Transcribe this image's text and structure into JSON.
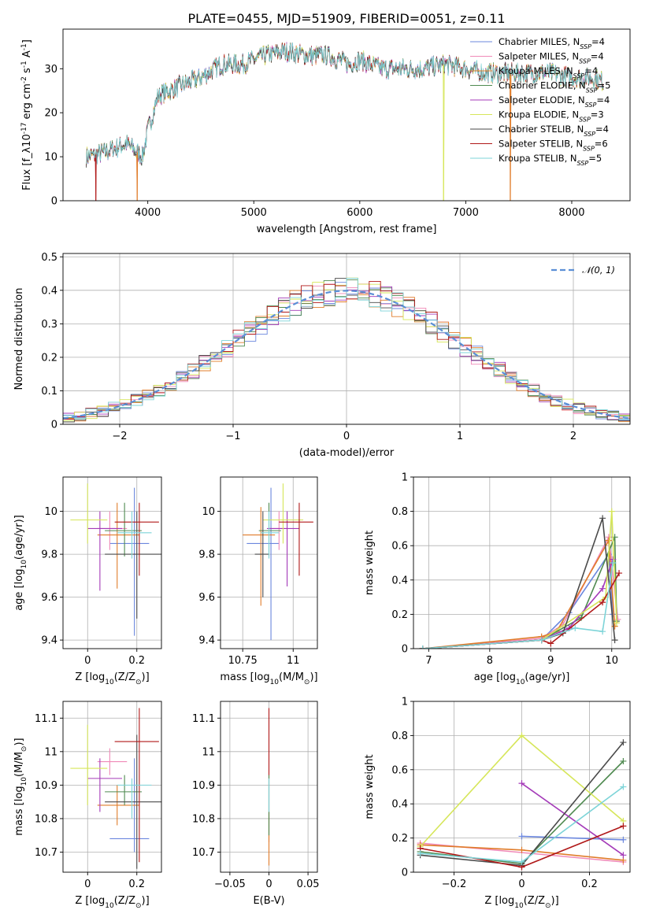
{
  "figure": {
    "title": "PLATE=0455, MJD=51909, FIBERID=0051, z=0.11"
  },
  "series_colors": [
    "#6b87de",
    "#f08ab8",
    "#e07c2a",
    "#4f8a50",
    "#a43ab8",
    "#d6e65a",
    "#4a4a4a",
    "#b01818",
    "#7dd4d8"
  ],
  "chart_data": [
    {
      "id": "spectrum",
      "type": "line",
      "xlabel": "wavelength [Angstrom, rest frame]",
      "ylabel": "Flux [f_λ10^-17 erg cm^-2 s^-1 A^-1]",
      "xlim": [
        3200,
        8550
      ],
      "ylim": [
        0,
        39
      ],
      "xticks": [
        4000,
        5000,
        6000,
        7000,
        8000
      ],
      "yticks": [
        0,
        10,
        20,
        30
      ],
      "grid": false,
      "legend_position": "top-right",
      "series": [
        {
          "name": "Chabrier MILES, N_SSP=4"
        },
        {
          "name": "Salpeter MILES, N_SSP=4"
        },
        {
          "name": "Kroupa MILES, N_SSP=4"
        },
        {
          "name": "Chabrier ELODIE, N_SSP=5"
        },
        {
          "name": "Salpeter ELODIE, N_SSP=4"
        },
        {
          "name": "Kroupa ELODIE, N_SSP=3"
        },
        {
          "name": "Chabrier STELIB, N_SSP=4"
        },
        {
          "name": "Salpeter STELIB, N_SSP=6"
        },
        {
          "name": "Kroupa STELIB, N_SSP=5"
        }
      ],
      "continuum_x": [
        3420,
        3600,
        3800,
        3950,
        4000,
        4100,
        4300,
        4500,
        4700,
        4900,
        5100,
        5300,
        5500,
        5700,
        5900,
        6000,
        6200,
        6400,
        6600,
        6800,
        7000,
        7200,
        7400,
        7600,
        7800,
        8000,
        8200,
        8300
      ],
      "continuum_y": [
        10,
        11,
        13,
        10,
        16,
        24,
        26,
        28,
        31,
        31,
        33,
        34,
        33,
        33,
        31,
        32,
        30,
        30,
        30,
        31,
        30,
        29,
        29,
        29,
        29,
        28,
        28,
        27
      ],
      "dropouts": [
        {
          "series": 7,
          "x": 3510
        },
        {
          "series": 2,
          "x": 3900
        },
        {
          "series": 5,
          "x": 6790
        },
        {
          "series": 2,
          "x": 7420
        }
      ]
    },
    {
      "id": "residual-histogram",
      "type": "bar",
      "xlabel": "(data-model)/error",
      "ylabel": "Normed distribution",
      "xlim": [
        -2.5,
        2.5
      ],
      "ylim": [
        0,
        0.51
      ],
      "xticks": [
        -2,
        -1,
        0,
        1,
        2
      ],
      "yticks": [
        0.0,
        0.1,
        0.2,
        0.3,
        0.4,
        0.5
      ],
      "grid": true,
      "legend_position": "top-right",
      "reference_curve": {
        "name": "𝒩(0, 1)",
        "mean": 0,
        "sigma": 1
      },
      "bin_width": 0.1
    },
    {
      "id": "age-vs-Z",
      "type": "scatter",
      "xlabel": "Z [log10(Z/Z⊙)]",
      "ylabel": "age  [log10(age/yr)]",
      "xlim": [
        -0.1,
        0.3
      ],
      "ylim": [
        9.36,
        10.16
      ],
      "xticks": [
        0.0,
        0.2
      ],
      "yticks": [
        9.4,
        9.6,
        9.8,
        10.0
      ],
      "grid": true,
      "points": [
        {
          "series": 0,
          "x": 0.19,
          "xerr": [
            0.1,
            0.06
          ],
          "y": 9.85,
          "yerr": [
            0.43,
            0.26
          ]
        },
        {
          "series": 1,
          "x": 0.09,
          "xerr": [
            0.05,
            0.07
          ],
          "y": 9.92,
          "yerr": [
            0.1,
            0.08
          ]
        },
        {
          "series": 2,
          "x": 0.12,
          "xerr": [
            0.08,
            0.09
          ],
          "y": 9.89,
          "yerr": [
            0.25,
            0.15
          ]
        },
        {
          "series": 3,
          "x": 0.15,
          "xerr": [
            0.08,
            0.07
          ],
          "y": 9.91,
          "yerr": [
            0.12,
            0.13
          ]
        },
        {
          "series": 4,
          "x": 0.05,
          "xerr": [
            0.05,
            0.09
          ],
          "y": 9.92,
          "yerr": [
            0.29,
            0.08
          ]
        },
        {
          "series": 5,
          "x": 0.0,
          "xerr": [
            0.07,
            0.08
          ],
          "y": 9.96,
          "yerr": [
            0.11,
            0.17
          ]
        },
        {
          "series": 6,
          "x": 0.2,
          "xerr": [
            0.13,
            0.1
          ],
          "y": 9.8,
          "yerr": [
            0.3,
            0.2
          ]
        },
        {
          "series": 7,
          "x": 0.21,
          "xerr": [
            0.1,
            0.08
          ],
          "y": 9.95,
          "yerr": [
            0.25,
            0.09
          ]
        },
        {
          "series": 8,
          "x": 0.18,
          "xerr": [
            0.06,
            0.08
          ],
          "y": 9.9,
          "yerr": [
            0.12,
            0.1
          ]
        }
      ]
    },
    {
      "id": "age-vs-mass",
      "type": "scatter",
      "xlabel": "mass [log10(M/M⊙)]",
      "ylabel": "",
      "xlim": [
        10.64,
        11.12
      ],
      "ylim": [
        9.36,
        10.16
      ],
      "xticks": [
        10.75,
        11.0
      ],
      "yticks": [
        9.4,
        9.6,
        9.8,
        10.0
      ],
      "grid": true,
      "points": [
        {
          "series": 0,
          "x": 10.89,
          "xerr": [
            0.12,
            0.04
          ],
          "y": 9.85,
          "yerr": [
            0.45,
            0.26
          ]
        },
        {
          "series": 1,
          "x": 10.93,
          "xerr": [
            0.05,
            0.04
          ],
          "y": 9.92,
          "yerr": [
            0.1,
            0.08
          ]
        },
        {
          "series": 2,
          "x": 10.84,
          "xerr": [
            0.09,
            0.07
          ],
          "y": 9.89,
          "yerr": [
            0.33,
            0.13
          ]
        },
        {
          "series": 3,
          "x": 10.88,
          "xerr": [
            0.05,
            0.06
          ],
          "y": 9.91,
          "yerr": [
            0.12,
            0.13
          ]
        },
        {
          "series": 4,
          "x": 10.97,
          "xerr": [
            0.1,
            0.06
          ],
          "y": 9.92,
          "yerr": [
            0.27,
            0.08
          ]
        },
        {
          "series": 5,
          "x": 10.95,
          "xerr": [
            0.1,
            0.1
          ],
          "y": 9.96,
          "yerr": [
            0.11,
            0.17
          ]
        },
        {
          "series": 6,
          "x": 10.85,
          "xerr": [
            0.04,
            0.03
          ],
          "y": 9.8,
          "yerr": [
            0.2,
            0.2
          ]
        },
        {
          "series": 7,
          "x": 11.03,
          "xerr": [
            0.1,
            0.07
          ],
          "y": 9.95,
          "yerr": [
            0.25,
            0.09
          ]
        },
        {
          "series": 8,
          "x": 10.88,
          "xerr": [
            0.04,
            0.05
          ],
          "y": 9.9,
          "yerr": [
            0.12,
            0.1
          ]
        }
      ]
    },
    {
      "id": "massweight-vs-age",
      "type": "line",
      "xlabel": "age  [log10(age/yr)]",
      "ylabel": "mass weight",
      "xlim": [
        6.75,
        10.3
      ],
      "ylim": [
        0,
        1.0
      ],
      "xticks": [
        7,
        8,
        9,
        10
      ],
      "yticks": [
        0.0,
        0.2,
        0.4,
        0.6,
        0.8,
        1.0
      ],
      "grid": true,
      "series": [
        {
          "series": 0,
          "x": [
            6.9,
            8.85,
            9.3,
            9.95,
            10.02
          ],
          "y": [
            0.0,
            0.05,
            0.21,
            0.55,
            0.2
          ]
        },
        {
          "series": 1,
          "x": [
            6.9,
            8.85,
            9.2,
            9.95,
            10.1
          ],
          "y": [
            0.0,
            0.06,
            0.14,
            0.65,
            0.17
          ]
        },
        {
          "series": 2,
          "x": [
            6.9,
            8.85,
            9.1,
            9.95,
            10.05
          ],
          "y": [
            0.0,
            0.07,
            0.1,
            0.63,
            0.13
          ]
        },
        {
          "series": 3,
          "x": [
            6.9,
            8.85,
            9.5,
            10.05,
            10.08
          ],
          "y": [
            0.0,
            0.05,
            0.18,
            0.65,
            0.16
          ]
        },
        {
          "series": 4,
          "x": [
            6.9,
            8.85,
            9.3,
            9.85,
            10.02
          ],
          "y": [
            0.0,
            0.05,
            0.12,
            0.35,
            0.52
          ]
        },
        {
          "series": 5,
          "x": [
            6.9,
            8.85,
            9.9,
            10.0,
            10.08
          ],
          "y": [
            0.0,
            0.05,
            0.3,
            0.8,
            0.15
          ]
        },
        {
          "series": 6,
          "x": [
            6.9,
            8.85,
            9.2,
            9.85,
            10.05
          ],
          "y": [
            0.0,
            0.05,
            0.09,
            0.76,
            0.05
          ]
        },
        {
          "series": 7,
          "x": [
            6.9,
            8.85,
            9.0,
            9.85,
            10.12
          ],
          "y": [
            0.0,
            0.05,
            0.03,
            0.27,
            0.44
          ]
        },
        {
          "series": 8,
          "x": [
            6.9,
            8.85,
            9.4,
            9.85,
            10.02
          ],
          "y": [
            0.0,
            0.05,
            0.12,
            0.1,
            0.5
          ]
        }
      ]
    },
    {
      "id": "mass-vs-Z",
      "type": "scatter",
      "xlabel": "Z [log10(Z/Z⊙)]",
      "ylabel": "mass [log10(M/M⊙)]",
      "xlim": [
        -0.1,
        0.3
      ],
      "ylim": [
        10.64,
        11.15
      ],
      "xticks": [
        0.0,
        0.2
      ],
      "yticks": [
        10.7,
        10.8,
        10.9,
        11.0,
        11.1
      ],
      "grid": true,
      "points": [
        {
          "series": 0,
          "x": 0.19,
          "xerr": [
            0.1,
            0.06
          ],
          "y": 10.74,
          "yerr": [
            0.04,
            0.24
          ]
        },
        {
          "series": 1,
          "x": 0.09,
          "xerr": [
            0.05,
            0.07
          ],
          "y": 10.97,
          "yerr": [
            0.04,
            0.04
          ]
        },
        {
          "series": 2,
          "x": 0.12,
          "xerr": [
            0.08,
            0.09
          ],
          "y": 10.84,
          "yerr": [
            0.06,
            0.06
          ]
        },
        {
          "series": 3,
          "x": 0.15,
          "xerr": [
            0.08,
            0.07
          ],
          "y": 10.88,
          "yerr": [
            0.04,
            0.05
          ]
        },
        {
          "series": 4,
          "x": 0.05,
          "xerr": [
            0.05,
            0.09
          ],
          "y": 10.92,
          "yerr": [
            0.1,
            0.06
          ]
        },
        {
          "series": 5,
          "x": 0.0,
          "xerr": [
            0.07,
            0.08
          ],
          "y": 10.95,
          "yerr": [
            0.11,
            0.13
          ]
        },
        {
          "series": 6,
          "x": 0.2,
          "xerr": [
            0.13,
            0.1
          ],
          "y": 10.85,
          "yerr": [
            0.2,
            0.2
          ]
        },
        {
          "series": 7,
          "x": 0.21,
          "xerr": [
            0.1,
            0.08
          ],
          "y": 11.03,
          "yerr": [
            0.36,
            0.1
          ]
        },
        {
          "series": 8,
          "x": 0.18,
          "xerr": [
            0.06,
            0.08
          ],
          "y": 10.9,
          "yerr": [
            0.1,
            0.02
          ]
        }
      ]
    },
    {
      "id": "mass-vs-EBV",
      "type": "scatter",
      "xlabel": "E(B-V)",
      "ylabel": "",
      "xlim": [
        -0.062,
        0.062
      ],
      "ylim": [
        10.64,
        11.15
      ],
      "xticks": [
        -0.05,
        0.0,
        0.05
      ],
      "yticks": [
        10.7,
        10.8,
        10.9,
        11.0,
        11.1
      ],
      "grid": true,
      "points": [
        {
          "series": 7,
          "x": 0.0,
          "y": 10.93,
          "yerr": [
            0.2,
            0.2
          ]
        },
        {
          "series": 2,
          "x": 0.0,
          "y": 10.75,
          "yerr": [
            0.09,
            0.07
          ]
        },
        {
          "series": 3,
          "x": 0.0,
          "y": 10.85,
          "yerr": [
            0.1,
            0.08
          ]
        },
        {
          "series": 8,
          "x": 0.0,
          "y": 10.88,
          "yerr": [
            0.06,
            0.04
          ]
        }
      ]
    },
    {
      "id": "massweight-vs-Z",
      "type": "line",
      "xlabel": "Z [log10(Z/Z⊙)]",
      "ylabel": "mass weight",
      "xlim": [
        -0.32,
        0.32
      ],
      "ylim": [
        0,
        1.0
      ],
      "xticks": [
        -0.2,
        0.0,
        0.2
      ],
      "yticks": [
        0.0,
        0.2,
        0.4,
        0.6,
        0.8,
        1.0
      ],
      "grid": true,
      "series": [
        {
          "series": 0,
          "x": [
            0.0,
            0.3
          ],
          "y": [
            0.21,
            0.19
          ]
        },
        {
          "series": 1,
          "x": [
            -0.3,
            0.3
          ],
          "y": [
            0.17,
            0.06
          ]
        },
        {
          "series": 2,
          "x": [
            -0.3,
            0.0,
            0.3
          ],
          "y": [
            0.16,
            0.13,
            0.07
          ]
        },
        {
          "series": 3,
          "x": [
            -0.3,
            0.0,
            0.3
          ],
          "y": [
            0.12,
            0.05,
            0.65
          ]
        },
        {
          "series": 4,
          "x": [
            0.0,
            0.3
          ],
          "y": [
            0.52,
            0.1
          ]
        },
        {
          "series": 5,
          "x": [
            -0.3,
            0.0,
            0.3
          ],
          "y": [
            0.15,
            0.8,
            0.3
          ]
        },
        {
          "series": 6,
          "x": [
            -0.3,
            0.0,
            0.3
          ],
          "y": [
            0.1,
            0.04,
            0.76
          ]
        },
        {
          "series": 7,
          "x": [
            -0.3,
            0.0,
            0.3
          ],
          "y": [
            0.14,
            0.03,
            0.27
          ]
        },
        {
          "series": 8,
          "x": [
            -0.3,
            0.0,
            0.3
          ],
          "y": [
            0.11,
            0.06,
            0.5
          ]
        }
      ]
    }
  ]
}
